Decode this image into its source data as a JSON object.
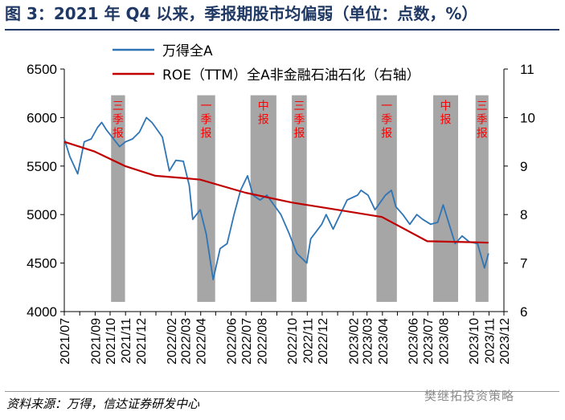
{
  "title": "图 3：2021 年 Q4 以来，季报期股市均偏弱（单位：点数，%）",
  "source": "资料来源：万得，信达证券研发中心",
  "watermark": "樊继拓投资策略",
  "chart_data": {
    "type": "line",
    "x_ticks": [
      "2021/07",
      "2021/08",
      "2021/09",
      "2021/10",
      "2021/11",
      "2021/12",
      "2022/01",
      "2022/02",
      "2022/03",
      "2022/04",
      "2022/05",
      "2022/06",
      "2022/07",
      "2022/08",
      "2022/09",
      "2022/10",
      "2022/11",
      "2022/12",
      "2023/01",
      "2023/02",
      "2023/03",
      "2023/04",
      "2023/05",
      "2023/06",
      "2023/07",
      "2023/08",
      "2023/09",
      "2023/10",
      "2023/11",
      "2023/12"
    ],
    "x_tick_labels": [
      "2021/07",
      "2021/09",
      "2021/10",
      "2021/11",
      "2021/12",
      "2022/02",
      "2022/03",
      "2022/04",
      "2022/06",
      "2022/07",
      "2022/08",
      "2022/10",
      "2022/11",
      "2022/12",
      "2023/02",
      "2023/03",
      "2023/04",
      "2023/06",
      "2023/07",
      "2023/08",
      "2023/10",
      "2023/11",
      "2023/12"
    ],
    "y_left": {
      "min": 4000,
      "max": 6500,
      "ticks": [
        4000,
        4500,
        5000,
        5500,
        6000,
        6500
      ]
    },
    "y_right": {
      "min": 6,
      "max": 11,
      "ticks": [
        6,
        7,
        8,
        9,
        10,
        11
      ]
    },
    "legend": {
      "position": "top",
      "entries": [
        "万得全A",
        "ROE（TTM）全A非金融石油石化（右轴）"
      ]
    },
    "series": [
      {
        "name": "万得全A",
        "axis": "left",
        "color": "#2e75b6",
        "points": [
          [
            "2021-07-01",
            5780
          ],
          [
            "2021-07-12",
            5600
          ],
          [
            "2021-07-28",
            5420
          ],
          [
            "2021-08-10",
            5750
          ],
          [
            "2021-08-24",
            5780
          ],
          [
            "2021-09-06",
            5900
          ],
          [
            "2021-09-14",
            5950
          ],
          [
            "2021-09-24",
            5870
          ],
          [
            "2021-10-08",
            5780
          ],
          [
            "2021-10-20",
            5700
          ],
          [
            "2021-11-01",
            5750
          ],
          [
            "2021-11-15",
            5780
          ],
          [
            "2021-11-29",
            5850
          ],
          [
            "2021-12-13",
            6000
          ],
          [
            "2021-12-24",
            5950
          ],
          [
            "2021-12-31",
            5900
          ],
          [
            "2022-01-14",
            5800
          ],
          [
            "2022-01-28",
            5450
          ],
          [
            "2022-02-10",
            5560
          ],
          [
            "2022-02-25",
            5550
          ],
          [
            "2022-03-09",
            5300
          ],
          [
            "2022-03-16",
            4950
          ],
          [
            "2022-03-31",
            5050
          ],
          [
            "2022-04-12",
            4800
          ],
          [
            "2022-04-26",
            4330
          ],
          [
            "2022-05-10",
            4650
          ],
          [
            "2022-05-24",
            4700
          ],
          [
            "2022-06-07",
            5000
          ],
          [
            "2022-06-20",
            5250
          ],
          [
            "2022-07-04",
            5400
          ],
          [
            "2022-07-15",
            5200
          ],
          [
            "2022-07-29",
            5150
          ],
          [
            "2022-08-12",
            5200
          ],
          [
            "2022-08-26",
            5100
          ],
          [
            "2022-09-09",
            5000
          ],
          [
            "2022-09-26",
            4800
          ],
          [
            "2022-10-11",
            4600
          ],
          [
            "2022-10-31",
            4500
          ],
          [
            "2022-11-08",
            4750
          ],
          [
            "2022-11-30",
            4900
          ],
          [
            "2022-12-09",
            5000
          ],
          [
            "2022-12-23",
            4850
          ],
          [
            "2023-01-06",
            5000
          ],
          [
            "2023-01-20",
            5150
          ],
          [
            "2023-02-10",
            5200
          ],
          [
            "2023-02-17",
            5250
          ],
          [
            "2023-03-03",
            5200
          ],
          [
            "2023-03-17",
            5050
          ],
          [
            "2023-04-07",
            5200
          ],
          [
            "2023-04-19",
            5250
          ],
          [
            "2023-04-28",
            5080
          ],
          [
            "2023-05-12",
            5000
          ],
          [
            "2023-05-26",
            4900
          ],
          [
            "2023-06-09",
            5000
          ],
          [
            "2023-06-21",
            4950
          ],
          [
            "2023-07-07",
            4900
          ],
          [
            "2023-07-21",
            4920
          ],
          [
            "2023-08-01",
            5100
          ],
          [
            "2023-08-10",
            4950
          ],
          [
            "2023-08-25",
            4700
          ],
          [
            "2023-09-08",
            4780
          ],
          [
            "2023-09-22",
            4720
          ],
          [
            "2023-10-09",
            4700
          ],
          [
            "2023-10-23",
            4450
          ],
          [
            "2023-10-31",
            4600
          ]
        ]
      },
      {
        "name": "ROE（TTM）全A非金融石油石化（右轴）",
        "axis": "right",
        "color": "#c00000",
        "points": [
          [
            "2021-07-01",
            9.5
          ],
          [
            "2021-08-31",
            9.3
          ],
          [
            "2021-10-31",
            9.0
          ],
          [
            "2021-12-31",
            8.8
          ],
          [
            "2022-02-28",
            8.75
          ],
          [
            "2022-03-31",
            8.72
          ],
          [
            "2022-06-30",
            8.45
          ],
          [
            "2022-09-30",
            8.25
          ],
          [
            "2022-12-31",
            8.1
          ],
          [
            "2023-03-31",
            7.95
          ],
          [
            "2023-06-30",
            7.45
          ],
          [
            "2023-09-30",
            7.43
          ],
          [
            "2023-10-31",
            7.42
          ]
        ]
      }
    ],
    "shaded_periods": [
      {
        "label": "三季报",
        "start": "2021-10-03",
        "end": "2021-10-31"
      },
      {
        "label": "一季报",
        "start": "2022-03-25",
        "end": "2022-04-30"
      },
      {
        "label": "中报",
        "start": "2022-07-10",
        "end": "2022-08-31"
      },
      {
        "label": "三季报",
        "start": "2022-10-01",
        "end": "2022-10-31"
      },
      {
        "label": "一季报",
        "start": "2023-03-20",
        "end": "2023-04-30"
      },
      {
        "label": "中报",
        "start": "2023-07-12",
        "end": "2023-08-31"
      },
      {
        "label": "三季报",
        "start": "2023-10-05",
        "end": "2023-10-31"
      }
    ]
  }
}
